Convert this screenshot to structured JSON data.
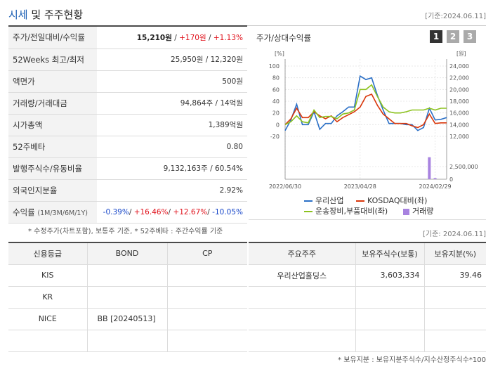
{
  "header": {
    "title_accent": "시세",
    "title_rest": " 및 주주현황",
    "date": "[기준:2024.06.11]"
  },
  "price_table": {
    "rows": [
      {
        "label": "주가/전일대비/수익률",
        "price": "15,210원",
        "sep1": " / ",
        "change": "+170원",
        "sep2": " / ",
        "rate": "+1.13%"
      },
      {
        "label": "52Weeks 최고/최저",
        "value": "25,950원 / 12,320원"
      },
      {
        "label": "액면가",
        "value": "500원"
      },
      {
        "label": "거래량/거래대금",
        "value": "94,864주 / 14억원"
      },
      {
        "label": "시가총액",
        "value": "1,389억원"
      },
      {
        "label": "52주베타",
        "value": "0.80"
      },
      {
        "label": "발행주식수/유동비율",
        "value": "9,132,163주 / 60.54%"
      },
      {
        "label": "외국인지분율",
        "value": "2.92%"
      },
      {
        "label": "수익률",
        "label_sub": "(1M/3M/6M/1Y)",
        "r1": "-0.39%",
        "r2": "+16.46%",
        "r3": "+12.67%",
        "r4": "-10.05%",
        "sep": "/ "
      }
    ],
    "note": "* 수정주가(차트포함), 보통주 기준, * 52주베타 : 주간수익률 기준"
  },
  "chart_panel": {
    "title": "주가/상대수익률",
    "buttons": [
      "1",
      "2",
      "3"
    ]
  },
  "chart_data": {
    "type": "line",
    "y_left_unit": "[%]",
    "y_right_unit": "[원]",
    "y_left_ticks": [
      "100",
      "80",
      "60",
      "40",
      "20",
      "0",
      "-20"
    ],
    "y_right_ticks": [
      "24,000",
      "22,000",
      "20,000",
      "18,000",
      "16,000",
      "14,000",
      "12,000"
    ],
    "volume_ticks": [
      "2,500,000",
      "0"
    ],
    "ylim_left": [
      -20,
      100
    ],
    "x_tick_labels": [
      "2022/06/30",
      "2023/04/28",
      "2024/02/29"
    ],
    "x_tick_index": [
      0,
      10,
      20
    ],
    "series": [
      {
        "name": "우리산업",
        "color": "#2a6fc6",
        "values": [
          -10,
          8,
          35,
          0,
          0,
          22,
          -8,
          2,
          2,
          15,
          22,
          30,
          30,
          83,
          77,
          80,
          50,
          25,
          2,
          2,
          2,
          0,
          0,
          -10,
          -5,
          28,
          8,
          9,
          12
        ]
      },
      {
        "name": "KOSDAQ대비(좌)",
        "color": "#d9370b",
        "values": [
          0,
          10,
          28,
          12,
          12,
          22,
          15,
          10,
          15,
          5,
          12,
          17,
          22,
          30,
          48,
          52,
          33,
          18,
          10,
          2,
          2,
          2,
          -2,
          -5,
          0,
          18,
          2,
          3,
          3
        ]
      },
      {
        "name": "운송장비,부품대비(좌)",
        "color": "#8cc21f",
        "values": [
          0,
          5,
          15,
          5,
          3,
          25,
          12,
          14,
          14,
          10,
          18,
          20,
          25,
          60,
          60,
          68,
          48,
          30,
          22,
          20,
          20,
          22,
          25,
          25,
          25,
          28,
          25,
          28,
          28
        ]
      }
    ],
    "volume": {
      "name": "거래량",
      "color": "#a883e0",
      "values": [
        0,
        0,
        0,
        0,
        0,
        0,
        0,
        0,
        0,
        0,
        0,
        0,
        0,
        0,
        0,
        0,
        0,
        0,
        0,
        0,
        0,
        0,
        0,
        0,
        0,
        0.95,
        0.05,
        0,
        0
      ]
    },
    "legend": {
      "s1": "우리산업",
      "s2": "KOSDAQ대비(좌)",
      "s3": "운송장비,부품대비(좌)",
      "vol": "거래량"
    }
  },
  "chart_footer": {
    "date": "[기준: 2024.06.11]"
  },
  "credit_table": {
    "headers": [
      "신용등급",
      "BOND",
      "CP"
    ],
    "rows": [
      {
        "agency": "KIS",
        "bond": "",
        "cp": ""
      },
      {
        "agency": "KR",
        "bond": "",
        "cp": ""
      },
      {
        "agency": "NICE",
        "bond": "BB   [20240513]",
        "cp": ""
      },
      {
        "agency": "",
        "bond": "",
        "cp": ""
      }
    ]
  },
  "holder_table": {
    "headers": [
      "주요주주",
      "보유주식수(보통)",
      "보유지분(%)"
    ],
    "rows": [
      {
        "name": "우리산업홀딩스",
        "shares": "3,603,334",
        "pct": "39.46"
      },
      {
        "name": "",
        "shares": "",
        "pct": ""
      },
      {
        "name": "",
        "shares": "",
        "pct": ""
      },
      {
        "name": "",
        "shares": "",
        "pct": ""
      }
    ],
    "note": "* 보유지분 : 보유지분주식수/지수산정주식수*100"
  }
}
